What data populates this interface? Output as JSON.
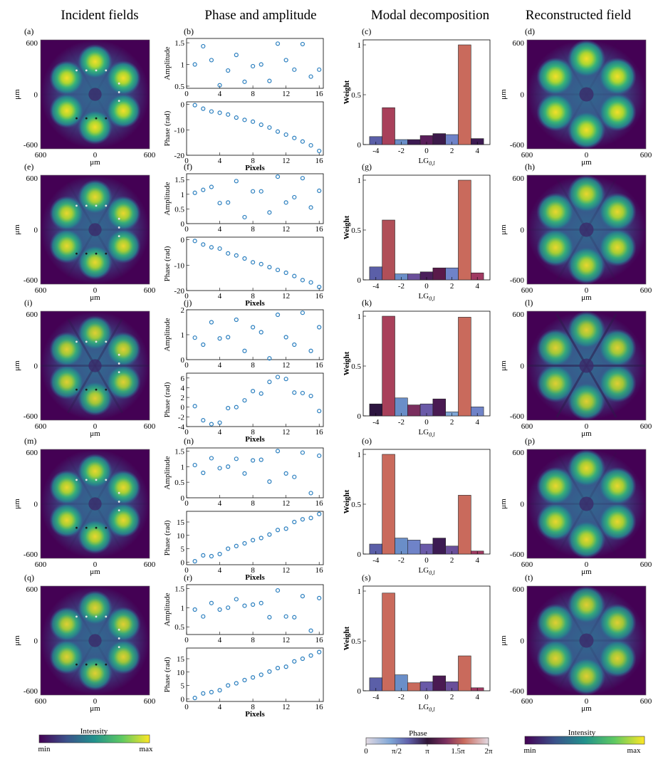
{
  "headers": [
    "Incident fields",
    "Phase and amplitude",
    "Modal decomposition",
    "Reconstructed field"
  ],
  "colorbars": {
    "intensity": {
      "title": "Intensity",
      "min": "min",
      "max": "max"
    },
    "phase": {
      "title": "Phase",
      "ticks": [
        "0",
        "π/2",
        "π",
        "1.5π",
        "2π"
      ]
    }
  },
  "field_axes": {
    "ylabel": "μm",
    "xlabel": "μm",
    "yticks": [
      "600",
      "0",
      "-600"
    ],
    "xticks": [
      "600",
      "0",
      "600"
    ]
  },
  "colors": {
    "scatter": "#2b7fbf",
    "bar_edge": "#222222"
  },
  "rows": [
    {
      "labels": [
        "(a)",
        "(b)",
        "(c)",
        "(d)"
      ],
      "petal": 0.95,
      "lines": 0.05
    },
    {
      "labels": [
        "(e)",
        "(f)",
        "(g)",
        "(h)"
      ],
      "petal": 0.9,
      "lines": 0.12
    },
    {
      "labels": [
        "(i)",
        "(j)",
        "(k)",
        "(l)"
      ],
      "petal": 0.85,
      "lines": 0.35
    },
    {
      "labels": [
        "(m)",
        "(n)",
        "(o)",
        "(p)"
      ],
      "petal": 0.9,
      "lines": 0.1
    },
    {
      "labels": [
        "(q)",
        "(r)",
        "(s)",
        "(t)"
      ],
      "petal": 0.85,
      "lines": 0.08
    }
  ],
  "chart_data": [
    {
      "type": "scatter",
      "panel": "(b)",
      "ylabel": "Amplitude",
      "ylim": [
        0.45,
        1.6
      ],
      "yticks": [
        0.5,
        1,
        1.5
      ],
      "x": [
        1,
        2,
        3,
        4,
        5,
        6,
        7,
        8,
        9,
        10,
        11,
        12,
        13,
        14,
        15,
        16
      ],
      "y": [
        1.0,
        1.42,
        1.1,
        0.52,
        0.86,
        1.22,
        0.6,
        0.96,
        1.0,
        0.62,
        1.48,
        1.1,
        0.88,
        1.47,
        0.72,
        0.88
      ]
    },
    {
      "type": "scatter",
      "panel": "(b) phase",
      "ylabel": "Phase (rad)",
      "xlabel": "Pixels",
      "ylim": [
        -20,
        1
      ],
      "yticks": [
        0,
        -10,
        -20
      ],
      "xticks": [
        0,
        4,
        8,
        12,
        16
      ],
      "x": [
        1,
        2,
        3,
        4,
        5,
        6,
        7,
        8,
        9,
        10,
        11,
        12,
        13,
        14,
        15,
        16
      ],
      "y": [
        -0.3,
        -1.7,
        -2.8,
        -3.3,
        -4.0,
        -5.2,
        -6.1,
        -6.8,
        -8.0,
        -9.1,
        -10.7,
        -11.9,
        -13.2,
        -14.6,
        -16.1,
        -18.3
      ]
    },
    {
      "type": "bar",
      "panel": "(c)",
      "ylabel": "Weight",
      "xlabel": "LG0,l",
      "ylim": [
        0,
        1.05
      ],
      "yticks": [
        0,
        0.5,
        1
      ],
      "xticks": [
        -4,
        -2,
        0,
        2,
        4
      ],
      "x": [
        -4,
        -3,
        -2,
        -1,
        0,
        1,
        2,
        3,
        4
      ],
      "values": [
        0.08,
        0.37,
        0.05,
        0.05,
        0.09,
        0.11,
        0.1,
        1.0,
        0.06
      ],
      "phase_colors": [
        "#5b5fa8",
        "#a8405a",
        "#6a8ec8",
        "#3c1a52",
        "#5a1e5a",
        "#3c1a4a",
        "#6f83c8",
        "#c96a5c",
        "#3c1a52"
      ]
    },
    {
      "type": "scatter",
      "panel": "(f)",
      "ylabel": "Amplitude",
      "ylim": [
        0,
        1.7
      ],
      "yticks": [
        0,
        0.5,
        1,
        1.5
      ],
      "x": [
        1,
        2,
        3,
        4,
        5,
        6,
        7,
        8,
        9,
        10,
        11,
        12,
        13,
        14,
        15,
        16
      ],
      "y": [
        1.05,
        1.15,
        1.25,
        0.7,
        0.72,
        1.45,
        0.22,
        1.1,
        1.1,
        0.38,
        1.6,
        0.72,
        0.9,
        1.55,
        0.55,
        1.12
      ]
    },
    {
      "type": "scatter",
      "panel": "(f) phase",
      "ylabel": "Phase (rad)",
      "xlabel": "Pixels",
      "ylim": [
        -20,
        1
      ],
      "yticks": [
        0,
        -10,
        -20
      ],
      "xticks": [
        0,
        4,
        8,
        12,
        16
      ],
      "x": [
        1,
        2,
        3,
        4,
        5,
        6,
        7,
        8,
        9,
        10,
        11,
        12,
        13,
        14,
        15,
        16
      ],
      "y": [
        -0.5,
        -1.9,
        -3.0,
        -3.5,
        -5.4,
        -6.2,
        -7.4,
        -8.9,
        -9.6,
        -10.8,
        -11.9,
        -13.0,
        -14.3,
        -15.9,
        -16.8,
        -18.6
      ]
    },
    {
      "type": "bar",
      "panel": "(g)",
      "ylabel": "Weight",
      "xlabel": "LG0,l",
      "ylim": [
        0,
        1.05
      ],
      "yticks": [
        0,
        0.5,
        1
      ],
      "xticks": [
        -4,
        -2,
        0,
        2,
        4
      ],
      "x": [
        -4,
        -3,
        -2,
        -1,
        0,
        1,
        2,
        3,
        4
      ],
      "values": [
        0.13,
        0.6,
        0.06,
        0.06,
        0.08,
        0.12,
        0.12,
        1.0,
        0.07
      ],
      "phase_colors": [
        "#5b5fa8",
        "#b04f58",
        "#6a8ec8",
        "#6a4f9a",
        "#4a1e5a",
        "#5a1a4a",
        "#6f83c8",
        "#c96a5c",
        "#a03a62"
      ]
    },
    {
      "type": "scatter",
      "panel": "(j)",
      "ylabel": "Amplitude",
      "ylim": [
        0,
        2
      ],
      "yticks": [
        0,
        1,
        2
      ],
      "x": [
        1,
        2,
        3,
        4,
        5,
        6,
        7,
        8,
        9,
        10,
        11,
        12,
        13,
        14,
        15,
        16
      ],
      "y": [
        0.88,
        0.6,
        1.5,
        0.85,
        0.9,
        1.6,
        0.35,
        1.3,
        1.1,
        0.05,
        1.8,
        0.9,
        0.6,
        1.88,
        0.35,
        1.3
      ]
    },
    {
      "type": "scatter",
      "panel": "(j) phase",
      "ylabel": "Phase (rad)",
      "xlabel": "Pixels",
      "ylim": [
        -4,
        7
      ],
      "yticks": [
        6,
        4,
        2,
        0,
        -2,
        -4
      ],
      "xticks": [
        0,
        4,
        8,
        12,
        16
      ],
      "x": [
        1,
        2,
        3,
        4,
        5,
        6,
        7,
        8,
        9,
        10,
        11,
        12,
        13,
        14,
        15,
        16
      ],
      "y": [
        0.2,
        -2.7,
        -3.5,
        -3.2,
        -0.2,
        0.0,
        1.4,
        3.3,
        2.8,
        5.2,
        6.2,
        5.8,
        3.0,
        2.9,
        2.3,
        -0.8
      ]
    },
    {
      "type": "bar",
      "panel": "(k)",
      "ylabel": "Weight",
      "xlabel": "LG0,l",
      "ylim": [
        0,
        1.05
      ],
      "yticks": [
        0,
        0.5,
        1
      ],
      "xticks": [
        -4,
        -2,
        0,
        2,
        4
      ],
      "x": [
        -4,
        -3,
        -2,
        -1,
        0,
        1,
        2,
        3,
        4
      ],
      "values": [
        0.12,
        1.0,
        0.18,
        0.11,
        0.12,
        0.17,
        0.04,
        0.99,
        0.09
      ],
      "phase_colors": [
        "#2d1540",
        "#a8405a",
        "#6a8ec8",
        "#7a2e5e",
        "#6a5aa8",
        "#4a1a52",
        "#7fa6d6",
        "#c96a5c",
        "#6f83c8"
      ]
    },
    {
      "type": "scatter",
      "panel": "(n)",
      "ylabel": "Amplitude",
      "ylim": [
        0,
        1.6
      ],
      "yticks": [
        0,
        0.5,
        1,
        1.5
      ],
      "x": [
        1,
        2,
        3,
        4,
        5,
        6,
        7,
        8,
        9,
        10,
        11,
        12,
        13,
        14,
        15,
        16
      ],
      "y": [
        1.05,
        0.8,
        1.27,
        0.95,
        1.0,
        1.25,
        0.78,
        1.2,
        1.22,
        0.52,
        1.5,
        0.78,
        0.67,
        1.45,
        0.15,
        1.35
      ]
    },
    {
      "type": "scatter",
      "panel": "(n) phase",
      "ylabel": "Phase (rad)",
      "xlabel": "Pixels",
      "ylim": [
        -1,
        19
      ],
      "yticks": [
        0,
        5,
        10,
        15
      ],
      "xticks": [
        0,
        4,
        8,
        12,
        16
      ],
      "x": [
        1,
        2,
        3,
        4,
        5,
        6,
        7,
        8,
        9,
        10,
        11,
        12,
        13,
        14,
        15,
        16
      ],
      "y": [
        0.3,
        2.5,
        2.2,
        3.0,
        5.0,
        6.0,
        7.0,
        8.2,
        9.0,
        10.3,
        12.0,
        12.5,
        15.0,
        16.0,
        16.5,
        18.0
      ]
    },
    {
      "type": "bar",
      "panel": "(o)",
      "ylabel": "Weight",
      "xlabel": "LG0,l",
      "ylim": [
        0,
        1.05
      ],
      "yticks": [
        0,
        0.5,
        1
      ],
      "xticks": [
        -4,
        -2,
        0,
        2,
        4
      ],
      "x": [
        -4,
        -3,
        -2,
        -1,
        0,
        1,
        2,
        3,
        4
      ],
      "values": [
        0.1,
        1.0,
        0.16,
        0.14,
        0.1,
        0.16,
        0.08,
        0.59,
        0.03
      ],
      "phase_colors": [
        "#5b5fa8",
        "#c96a5c",
        "#6a8ec8",
        "#6f83c8",
        "#6a5aa8",
        "#3c1a52",
        "#6a4f9a",
        "#c96a5c",
        "#a03a62"
      ]
    },
    {
      "type": "scatter",
      "panel": "(r)",
      "ylabel": "Amplitude",
      "ylim": [
        0.3,
        1.6
      ],
      "yticks": [
        0.5,
        1,
        1.5
      ],
      "x": [
        1,
        2,
        3,
        4,
        5,
        6,
        7,
        8,
        9,
        10,
        11,
        12,
        13,
        14,
        15,
        16
      ],
      "y": [
        0.95,
        0.77,
        1.12,
        0.95,
        1.0,
        1.22,
        1.05,
        1.08,
        1.12,
        0.75,
        1.45,
        0.77,
        0.75,
        1.3,
        0.4,
        1.25
      ]
    },
    {
      "type": "scatter",
      "panel": "(r) phase",
      "ylabel": "Phase (rad)",
      "xlabel": "Pixels",
      "ylim": [
        -1,
        19
      ],
      "yticks": [
        0,
        5,
        10,
        15
      ],
      "xticks": [
        0,
        4,
        8,
        12,
        16
      ],
      "x": [
        1,
        2,
        3,
        4,
        5,
        6,
        7,
        8,
        9,
        10,
        11,
        12,
        13,
        14,
        15,
        16
      ],
      "y": [
        0.3,
        2.0,
        2.5,
        3.2,
        5.0,
        5.8,
        7.0,
        8.0,
        9.0,
        10.2,
        11.5,
        12.0,
        14.0,
        15.0,
        16.2,
        17.5
      ]
    },
    {
      "type": "bar",
      "panel": "(s)",
      "ylabel": "Weight",
      "xlabel": "LG0,l",
      "ylim": [
        0,
        1.05
      ],
      "yticks": [
        0,
        0.5,
        1
      ],
      "xticks": [
        -4,
        -2,
        0,
        2,
        4
      ],
      "x": [
        -4,
        -3,
        -2,
        -1,
        0,
        1,
        2,
        3,
        4
      ],
      "values": [
        0.13,
        0.98,
        0.16,
        0.08,
        0.09,
        0.15,
        0.09,
        0.35,
        0.03
      ],
      "phase_colors": [
        "#5b5fa8",
        "#c96a5c",
        "#6a8ec8",
        "#c96a5c",
        "#6a5aa8",
        "#4a1a52",
        "#6a4f9a",
        "#c96a5c",
        "#a03a62"
      ]
    }
  ]
}
